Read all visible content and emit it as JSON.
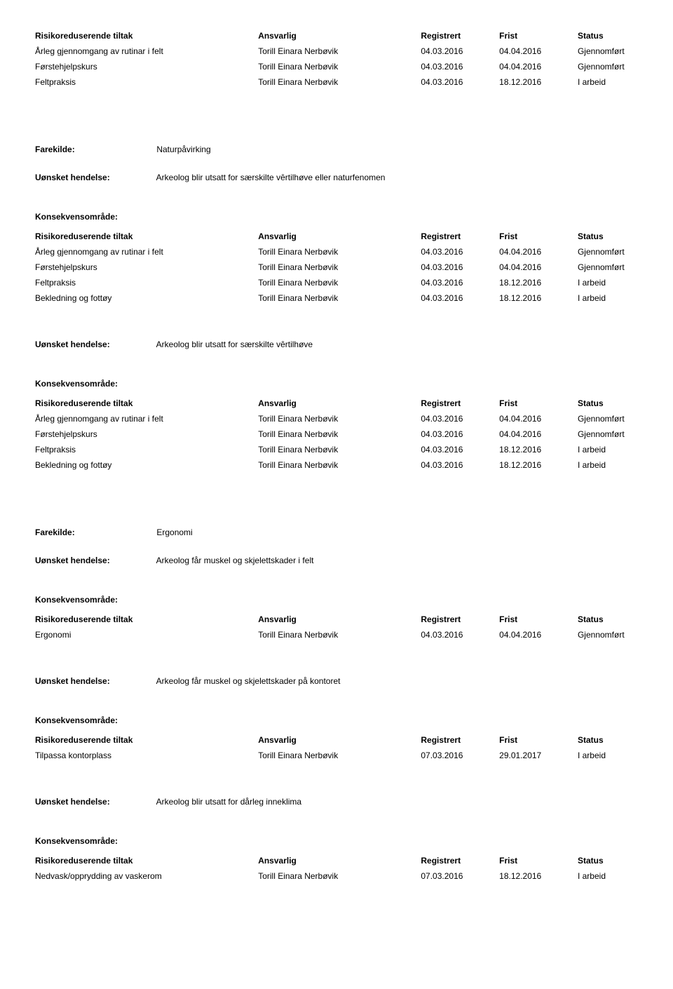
{
  "headers": {
    "tiltak": "Risikoreduserende tiltak",
    "ansvarlig": "Ansvarlig",
    "registrert": "Registrert",
    "frist": "Frist",
    "status": "Status"
  },
  "labels": {
    "farekilde": "Farekilde:",
    "uonsket": "Uønsket hendelse:",
    "konsekvens": "Konsekvensområde:"
  },
  "person": "Torill Einara Nerbøvik",
  "block1": {
    "rows": [
      {
        "t": "Årleg gjennomgang av rutinar i felt",
        "r": "04.03.2016",
        "f": "04.04.2016",
        "s": "Gjennomført"
      },
      {
        "t": "Førstehjelpskurs",
        "r": "04.03.2016",
        "f": "04.04.2016",
        "s": "Gjennomført"
      },
      {
        "t": "Feltpraksis",
        "r": "04.03.2016",
        "f": "18.12.2016",
        "s": "I arbeid"
      }
    ]
  },
  "farekilde2": "Naturpåvirking",
  "uonsket2a": "Arkeolog blir utsatt for særskilte vêrtilhøve eller naturfenomen",
  "block2a": {
    "rows": [
      {
        "t": "Årleg gjennomgang av rutinar i felt",
        "r": "04.03.2016",
        "f": "04.04.2016",
        "s": "Gjennomført"
      },
      {
        "t": "Førstehjelpskurs",
        "r": "04.03.2016",
        "f": "04.04.2016",
        "s": "Gjennomført"
      },
      {
        "t": "Feltpraksis",
        "r": "04.03.2016",
        "f": "18.12.2016",
        "s": "I arbeid"
      },
      {
        "t": "Bekledning og fottøy",
        "r": "04.03.2016",
        "f": "18.12.2016",
        "s": "I arbeid"
      }
    ]
  },
  "uonsket2b": "Arkeolog blir utsatt for særskilte vêrtilhøve",
  "block2b": {
    "rows": [
      {
        "t": "Årleg gjennomgang av rutinar i felt",
        "r": "04.03.2016",
        "f": "04.04.2016",
        "s": "Gjennomført"
      },
      {
        "t": "Førstehjelpskurs",
        "r": "04.03.2016",
        "f": "04.04.2016",
        "s": "Gjennomført"
      },
      {
        "t": "Feltpraksis",
        "r": "04.03.2016",
        "f": "18.12.2016",
        "s": "I arbeid"
      },
      {
        "t": "Bekledning og fottøy",
        "r": "04.03.2016",
        "f": "18.12.2016",
        "s": "I arbeid"
      }
    ]
  },
  "farekilde3": "Ergonomi",
  "uonsket3a": "Arkeolog får muskel og skjelettskader i felt",
  "block3a": {
    "rows": [
      {
        "t": "Ergonomi",
        "r": "04.03.2016",
        "f": "04.04.2016",
        "s": "Gjennomført"
      }
    ]
  },
  "uonsket3b": "Arkeolog får muskel og skjelettskader på kontoret",
  "block3b": {
    "rows": [
      {
        "t": "Tilpassa kontorplass",
        "r": "07.03.2016",
        "f": "29.01.2017",
        "s": "I arbeid"
      }
    ]
  },
  "uonsket3c": "Arkeolog blir utsatt for dårleg inneklima",
  "block3c": {
    "rows": [
      {
        "t": "Nedvask/opprydding av vaskerom",
        "r": "07.03.2016",
        "f": "18.12.2016",
        "s": "I arbeid"
      }
    ]
  }
}
